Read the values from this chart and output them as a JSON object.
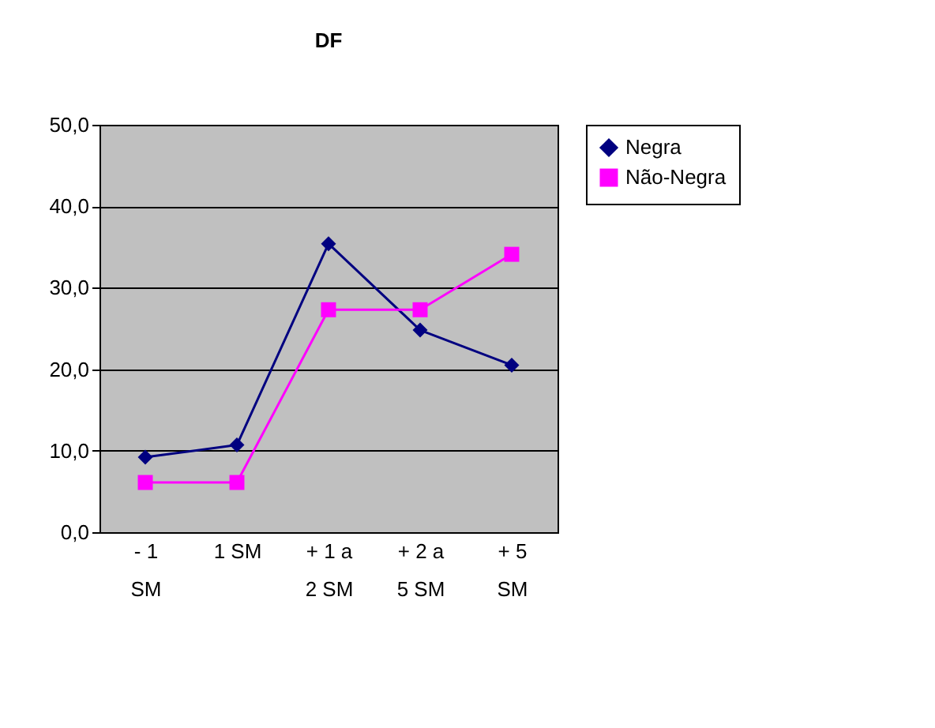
{
  "chart_data": {
    "type": "line",
    "title": "DF",
    "categories": [
      "- 1\nSM",
      "1 SM",
      "+ 1 a\n2 SM",
      "+ 2 a\n5 SM",
      "+ 5\nSM"
    ],
    "series": [
      {
        "name": "Negra",
        "color": "#000080",
        "marker": "diamond",
        "values": [
          9.2,
          10.7,
          35.4,
          24.8,
          20.5
        ]
      },
      {
        "name": "Não-Negra",
        "color": "#ff00ff",
        "marker": "square",
        "values": [
          6.1,
          6.1,
          27.3,
          27.3,
          34.1
        ]
      }
    ],
    "ylim": [
      0,
      50
    ],
    "yticks": [
      {
        "value": 0,
        "label": "0,0"
      },
      {
        "value": 10,
        "label": "10,0"
      },
      {
        "value": 20,
        "label": "20,0"
      },
      {
        "value": 30,
        "label": "30,0"
      },
      {
        "value": 40,
        "label": "40,0"
      },
      {
        "value": 50,
        "label": "50,0"
      }
    ],
    "grid": "y",
    "legend": "right",
    "line_style": "solid"
  }
}
